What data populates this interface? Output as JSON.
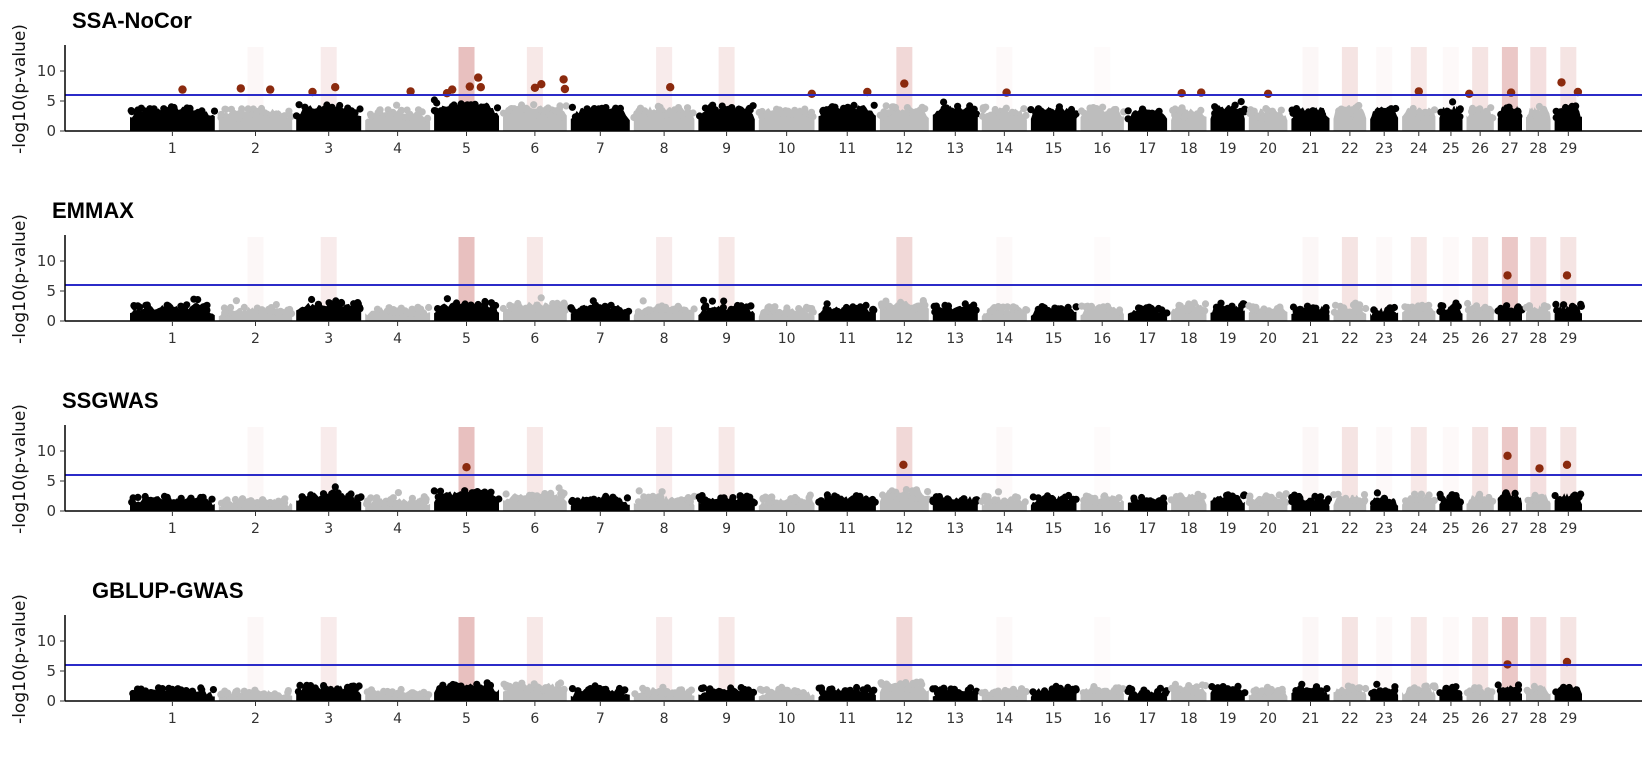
{
  "chart_data": {
    "type": "scatter",
    "xlabel": "",
    "ylabel": "-log10(p-value)",
    "ylim": [
      0,
      14
    ],
    "y_ticks": [
      0,
      5,
      10
    ],
    "threshold": 6.0,
    "chromosomes": [
      "1",
      "2",
      "3",
      "4",
      "5",
      "6",
      "7",
      "8",
      "9",
      "10",
      "11",
      "12",
      "13",
      "14",
      "15",
      "16",
      "17",
      "18",
      "19",
      "20",
      "21",
      "22",
      "23",
      "24",
      "25",
      "26",
      "27",
      "28",
      "29"
    ],
    "chrom_lengths": [
      158,
      137,
      121,
      121,
      121,
      119,
      110,
      113,
      105,
      104,
      107,
      91,
      84,
      84,
      85,
      81,
      73,
      66,
      64,
      72,
      71,
      61,
      52,
      62,
      43,
      51,
      45,
      46,
      51
    ],
    "highlight_intensity": [
      0,
      0.1,
      0.25,
      0,
      0.8,
      0.3,
      0,
      0.25,
      0.3,
      0,
      0,
      0.5,
      0,
      0.08,
      0,
      0.05,
      0,
      0,
      0,
      0,
      0.1,
      0.35,
      0.08,
      0.3,
      0.08,
      0.35,
      0.7,
      0.4,
      0.35
    ],
    "colors": {
      "odd_chrom": "#000000",
      "even_chrom": "#bdbdbd",
      "significant": "#8b2a0e",
      "threshold_line": "#2b2bc8",
      "highlight": "#c0504d"
    },
    "panels": [
      {
        "title": "SSA-NoCor",
        "base_levels": [
          4.3,
          4.0,
          4.6,
          3.8,
          5.0,
          4.6,
          4.2,
          4.4,
          4.5,
          4.1,
          4.6,
          4.3,
          4.5,
          4.2,
          4.3,
          4.2,
          4.0,
          4.1,
          4.6,
          4.0,
          4.2,
          4.6,
          4.3,
          4.2,
          4.4,
          4.3,
          4.5,
          4.3,
          4.4
        ],
        "significant_snps": [
          {
            "chr": 1,
            "pos": 0.62,
            "y": 6.9
          },
          {
            "chr": 2,
            "pos": 0.3,
            "y": 7.1
          },
          {
            "chr": 2,
            "pos": 0.7,
            "y": 6.9
          },
          {
            "chr": 3,
            "pos": 0.25,
            "y": 6.5
          },
          {
            "chr": 3,
            "pos": 0.6,
            "y": 7.3
          },
          {
            "chr": 4,
            "pos": 0.7,
            "y": 6.6
          },
          {
            "chr": 5,
            "pos": 0.2,
            "y": 6.3
          },
          {
            "chr": 5,
            "pos": 0.28,
            "y": 6.9
          },
          {
            "chr": 5,
            "pos": 0.55,
            "y": 7.4
          },
          {
            "chr": 5,
            "pos": 0.68,
            "y": 8.9
          },
          {
            "chr": 5,
            "pos": 0.72,
            "y": 7.3
          },
          {
            "chr": 6,
            "pos": 0.5,
            "y": 7.2
          },
          {
            "chr": 6,
            "pos": 0.6,
            "y": 7.8
          },
          {
            "chr": 6,
            "pos": 0.95,
            "y": 8.6
          },
          {
            "chr": 6,
            "pos": 0.97,
            "y": 7.0
          },
          {
            "chr": 8,
            "pos": 0.6,
            "y": 7.3
          },
          {
            "chr": 10,
            "pos": 0.95,
            "y": 6.2
          },
          {
            "chr": 11,
            "pos": 0.85,
            "y": 6.5
          },
          {
            "chr": 12,
            "pos": 0.5,
            "y": 7.9
          },
          {
            "chr": 14,
            "pos": 0.55,
            "y": 6.4
          },
          {
            "chr": 18,
            "pos": 0.3,
            "y": 6.3
          },
          {
            "chr": 18,
            "pos": 0.85,
            "y": 6.4
          },
          {
            "chr": 20,
            "pos": 0.5,
            "y": 6.2
          },
          {
            "chr": 24,
            "pos": 0.5,
            "y": 6.6
          },
          {
            "chr": 26,
            "pos": 0.1,
            "y": 6.2
          },
          {
            "chr": 27,
            "pos": 0.55,
            "y": 6.4
          },
          {
            "chr": 29,
            "pos": 0.25,
            "y": 8.1
          },
          {
            "chr": 29,
            "pos": 0.85,
            "y": 6.5
          }
        ]
      },
      {
        "title": "EMMAX",
        "base_levels": [
          2.9,
          2.6,
          3.3,
          2.6,
          3.3,
          3.5,
          2.9,
          2.8,
          2.8,
          2.6,
          2.7,
          3.6,
          2.9,
          2.6,
          2.7,
          2.8,
          2.4,
          3.3,
          3.1,
          2.8,
          2.8,
          2.9,
          2.5,
          2.9,
          2.8,
          3.1,
          2.9,
          2.9,
          3.0
        ],
        "significant_snps": [
          {
            "chr": 27,
            "pos": 0.4,
            "y": 7.6
          },
          {
            "chr": 29,
            "pos": 0.45,
            "y": 7.6
          }
        ]
      },
      {
        "title": "SSGWAS",
        "base_levels": [
          2.7,
          2.3,
          3.3,
          2.5,
          3.6,
          3.4,
          2.7,
          2.8,
          2.8,
          2.6,
          2.9,
          3.8,
          2.7,
          2.6,
          2.8,
          2.9,
          2.5,
          3.1,
          3.0,
          2.8,
          2.7,
          3.0,
          2.6,
          3.1,
          3.0,
          3.0,
          3.3,
          3.1,
          3.2
        ],
        "significant_snps": [
          {
            "chr": 5,
            "pos": 0.5,
            "y": 7.3
          },
          {
            "chr": 12,
            "pos": 0.48,
            "y": 7.7
          },
          {
            "chr": 27,
            "pos": 0.4,
            "y": 9.2
          },
          {
            "chr": 28,
            "pos": 0.55,
            "y": 7.1
          },
          {
            "chr": 29,
            "pos": 0.45,
            "y": 7.7
          }
        ]
      },
      {
        "title": "GBLUP-GWAS",
        "base_levels": [
          2.4,
          2.1,
          2.9,
          2.2,
          3.3,
          3.3,
          2.3,
          2.5,
          2.5,
          2.2,
          2.4,
          3.4,
          2.4,
          2.3,
          2.5,
          2.6,
          2.2,
          2.9,
          2.8,
          2.5,
          2.4,
          2.7,
          2.3,
          2.7,
          2.6,
          2.6,
          2.9,
          2.7,
          2.8
        ],
        "significant_snps": [
          {
            "chr": 27,
            "pos": 0.4,
            "y": 6.1
          },
          {
            "chr": 29,
            "pos": 0.45,
            "y": 6.5
          }
        ]
      }
    ]
  }
}
